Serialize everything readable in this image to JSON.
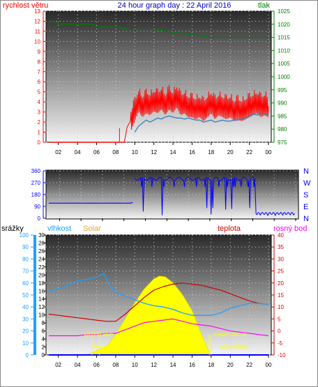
{
  "header": {
    "left_label": "rychlost větru",
    "title": "24 hour graph day : 22 April 2016",
    "right_label": "tlak"
  },
  "colors": {
    "wind": "#ff0000",
    "wind_avg": "#2f7fbf",
    "pressure": "#008000",
    "direction": "#0000ff",
    "humidity": "#1fa0ff",
    "solar": "#ffff00",
    "temperature": "#d00000",
    "dewpoint": "#ff00ff",
    "rain": "#0000ff"
  },
  "chart_data": [
    {
      "type": "line",
      "name": "wind-and-pressure",
      "x_ticks": [
        "02",
        "04",
        "06",
        "08",
        "10",
        "12",
        "14",
        "16",
        "18",
        "20",
        "22",
        "00"
      ],
      "y_left": {
        "ticks": [
          0,
          1,
          2,
          3,
          4,
          5,
          6,
          7,
          8,
          9,
          10,
          11,
          12,
          13
        ],
        "ylim": [
          0,
          13
        ]
      },
      "y_right": {
        "ticks": [
          975,
          980,
          985,
          990,
          995,
          1000,
          1005,
          1010,
          1015,
          1020,
          1025
        ],
        "ylim": [
          975,
          1025
        ]
      },
      "series": [
        {
          "key": "wind_gust",
          "x": [
            8.9,
            9.2,
            9.6,
            10.0,
            10.4,
            10.8,
            11.2,
            11.6,
            12.0,
            12.4,
            12.8,
            13.2,
            13.6,
            14.0,
            14.4,
            14.8,
            15.2,
            15.6,
            16.0,
            16.4,
            16.8,
            17.2,
            17.6,
            18.0,
            18.4,
            18.8,
            19.2,
            19.6,
            20.0,
            20.4,
            20.8,
            21.2,
            21.6,
            22.0,
            22.4,
            22.8,
            23.2,
            23.6,
            24.0
          ],
          "values": [
            0,
            1.5,
            2.2,
            3.2,
            4.2,
            3.6,
            4.0,
            3.8,
            4.2,
            4.0,
            4.4,
            3.8,
            4.4,
            4.0,
            4.6,
            3.8,
            4.0,
            3.6,
            3.6,
            3.4,
            3.6,
            3.2,
            3.6,
            4.0,
            3.4,
            3.8,
            3.6,
            3.4,
            3.6,
            3.2,
            3.4,
            3.2,
            3.4,
            3.6,
            3.8,
            4.0,
            3.6,
            3.8,
            3.6
          ]
        },
        {
          "key": "wind_avg",
          "x": [
            10.0,
            10.4,
            10.8,
            11.2,
            11.6,
            12.0,
            12.4,
            12.8,
            13.2,
            13.6,
            14.0,
            14.4,
            14.8,
            15.2,
            15.6,
            16.0,
            16.4,
            16.8,
            17.2,
            17.6,
            18.0,
            18.4,
            18.8,
            19.2,
            19.6,
            20.0,
            20.4,
            20.8,
            21.2,
            21.6,
            22.0,
            22.4,
            22.8,
            23.2,
            23.6,
            24.0
          ],
          "values": [
            1.0,
            1.6,
            1.9,
            2.2,
            2.0,
            2.2,
            2.4,
            2.3,
            2.5,
            2.6,
            2.5,
            2.4,
            2.4,
            2.3,
            2.4,
            2.3,
            2.2,
            2.2,
            2.0,
            2.1,
            2.2,
            2.0,
            2.1,
            2.2,
            2.1,
            2.1,
            2.2,
            2.2,
            2.3,
            2.4,
            2.6,
            2.8,
            2.7,
            2.9,
            2.8,
            2.8
          ]
        },
        {
          "key": "pressure",
          "x": [
            1.0,
            1.6,
            2.0,
            4.0,
            5.5,
            6.0,
            8.0,
            9.4,
            10.0,
            12.0,
            14.0,
            15.6,
            16.0,
            18.0,
            20.0,
            22.0,
            24.0
          ],
          "values": [
            1021.0,
            1021.0,
            1020.0,
            1020.0,
            1020.0,
            1019.0,
            1019.0,
            1018.0,
            1018.0,
            1018.0,
            1017.0,
            1016.0,
            1016.0,
            1015.0,
            1015.0,
            1015.0,
            1015.0
          ]
        }
      ]
    },
    {
      "type": "line",
      "name": "wind-direction",
      "x_ticks": [
        "02",
        "04",
        "06",
        "08",
        "10",
        "12",
        "14",
        "16",
        "18",
        "20",
        "22",
        "00"
      ],
      "y_left": {
        "ticks": [
          0,
          90,
          180,
          270,
          360
        ],
        "ylim": [
          0,
          360
        ]
      },
      "y_right_labels": [
        "N",
        "W",
        "S",
        "E",
        "N"
      ],
      "series": [
        {
          "key": "direction",
          "x": [
            1.0,
            8.6,
            8.8,
            9.0,
            9.5,
            10.0,
            10.5,
            11.0,
            12.0,
            13.0,
            14.0,
            15.0,
            16.0,
            17.0,
            18.0,
            19.0,
            20.0,
            20.5,
            21.0,
            22.0,
            23.0,
            24.0
          ],
          "values": [
            115,
            115,
            120,
            300,
            310,
            300,
            305,
            310,
            300,
            305,
            300,
            300,
            310,
            300,
            305,
            300,
            300,
            40,
            20,
            20,
            15,
            10
          ]
        }
      ]
    },
    {
      "type": "line",
      "name": "humidity-solar-temperature",
      "x_ticks": [
        "02",
        "04",
        "06",
        "08",
        "10",
        "12",
        "14",
        "16",
        "18",
        "20",
        "22",
        "00"
      ],
      "y_rain": {
        "ticks": [
          0,
          10,
          20,
          30,
          40,
          50,
          60,
          70,
          80,
          90,
          100
        ],
        "ylim": [
          0,
          100
        ]
      },
      "y_humidity": {
        "ticks": [
          0,
          2,
          4,
          6,
          8,
          10,
          12,
          14,
          16,
          18,
          20,
          22,
          24,
          26,
          28,
          30
        ],
        "ylim": [
          0,
          30
        ]
      },
      "y_temperature": {
        "ticks": [
          -10,
          -5,
          0,
          5,
          10,
          15,
          20,
          25,
          30,
          35,
          40
        ],
        "ylim": [
          -10,
          40
        ]
      },
      "legend": [
        "srážky",
        "vlhkost",
        "Solar",
        "teplota",
        "rosný bod"
      ],
      "annotations": [
        "východ slun",
        "západ slunce",
        "Moon Set",
        "Moon Rise"
      ],
      "series": [
        {
          "key": "humidity",
          "x": [
            1.0,
            2.0,
            3.0,
            4.0,
            5.0,
            6.0,
            6.8,
            7.2,
            8.0,
            9.0,
            10.0,
            11.0,
            12.0,
            13.0,
            14.0,
            15.0,
            16.0,
            17.0,
            18.0,
            19.0,
            20.0,
            21.0,
            22.0,
            23.0,
            24.0
          ],
          "values": [
            53,
            55,
            58,
            62,
            63,
            65,
            68,
            60,
            52,
            49,
            46,
            43,
            41,
            40,
            38,
            35,
            33,
            33,
            33,
            35,
            39,
            41,
            43,
            43,
            42
          ]
        },
        {
          "key": "solar",
          "x": [
            4.9,
            6.0,
            7.0,
            8.0,
            9.0,
            10.0,
            11.0,
            12.0,
            12.6,
            13.2,
            14.0,
            15.0,
            16.0,
            17.0,
            17.9
          ],
          "values": [
            0,
            1,
            2,
            5,
            9,
            13,
            16.5,
            19.0,
            19.7,
            19.5,
            18,
            15,
            11,
            5,
            0
          ]
        },
        {
          "key": "temperature",
          "x": [
            1.0,
            2.0,
            3.0,
            4.0,
            5.0,
            6.0,
            7.0,
            8.0,
            9.0,
            10.0,
            11.0,
            12.0,
            13.0,
            14.0,
            15.0,
            16.0,
            17.0,
            18.0,
            19.0,
            20.0,
            21.0,
            22.0,
            23.0,
            24.0
          ],
          "values": [
            7.0,
            6.5,
            6.0,
            5.5,
            5.0,
            4.5,
            4.0,
            4.0,
            7.0,
            10.5,
            14.0,
            17.0,
            18.5,
            19.5,
            20.0,
            19.5,
            19.0,
            18.0,
            17.0,
            15.5,
            14.0,
            12.5,
            11.5,
            11.0
          ]
        },
        {
          "key": "dewpoint",
          "x": [
            1.0,
            2.0,
            3.0,
            4.0,
            5.0,
            6.0,
            7.0,
            8.0,
            9.0,
            10.0,
            11.0,
            12.0,
            13.0,
            14.0,
            15.0,
            16.0,
            17.0,
            18.0,
            19.0,
            20.0,
            21.0,
            22.0,
            23.0,
            24.0
          ],
          "values": [
            -2.0,
            -2.0,
            -2.0,
            -2.0,
            -1.5,
            -1.5,
            -1.0,
            -1.0,
            0.5,
            2.0,
            3.5,
            4.0,
            4.5,
            5.0,
            4.0,
            3.0,
            2.5,
            2.0,
            1.0,
            0.0,
            -0.5,
            -1.0,
            -1.5,
            -2.0
          ]
        },
        {
          "key": "rain",
          "x": [
            1.0,
            24.0
          ],
          "values": [
            0,
            0
          ]
        }
      ]
    }
  ]
}
